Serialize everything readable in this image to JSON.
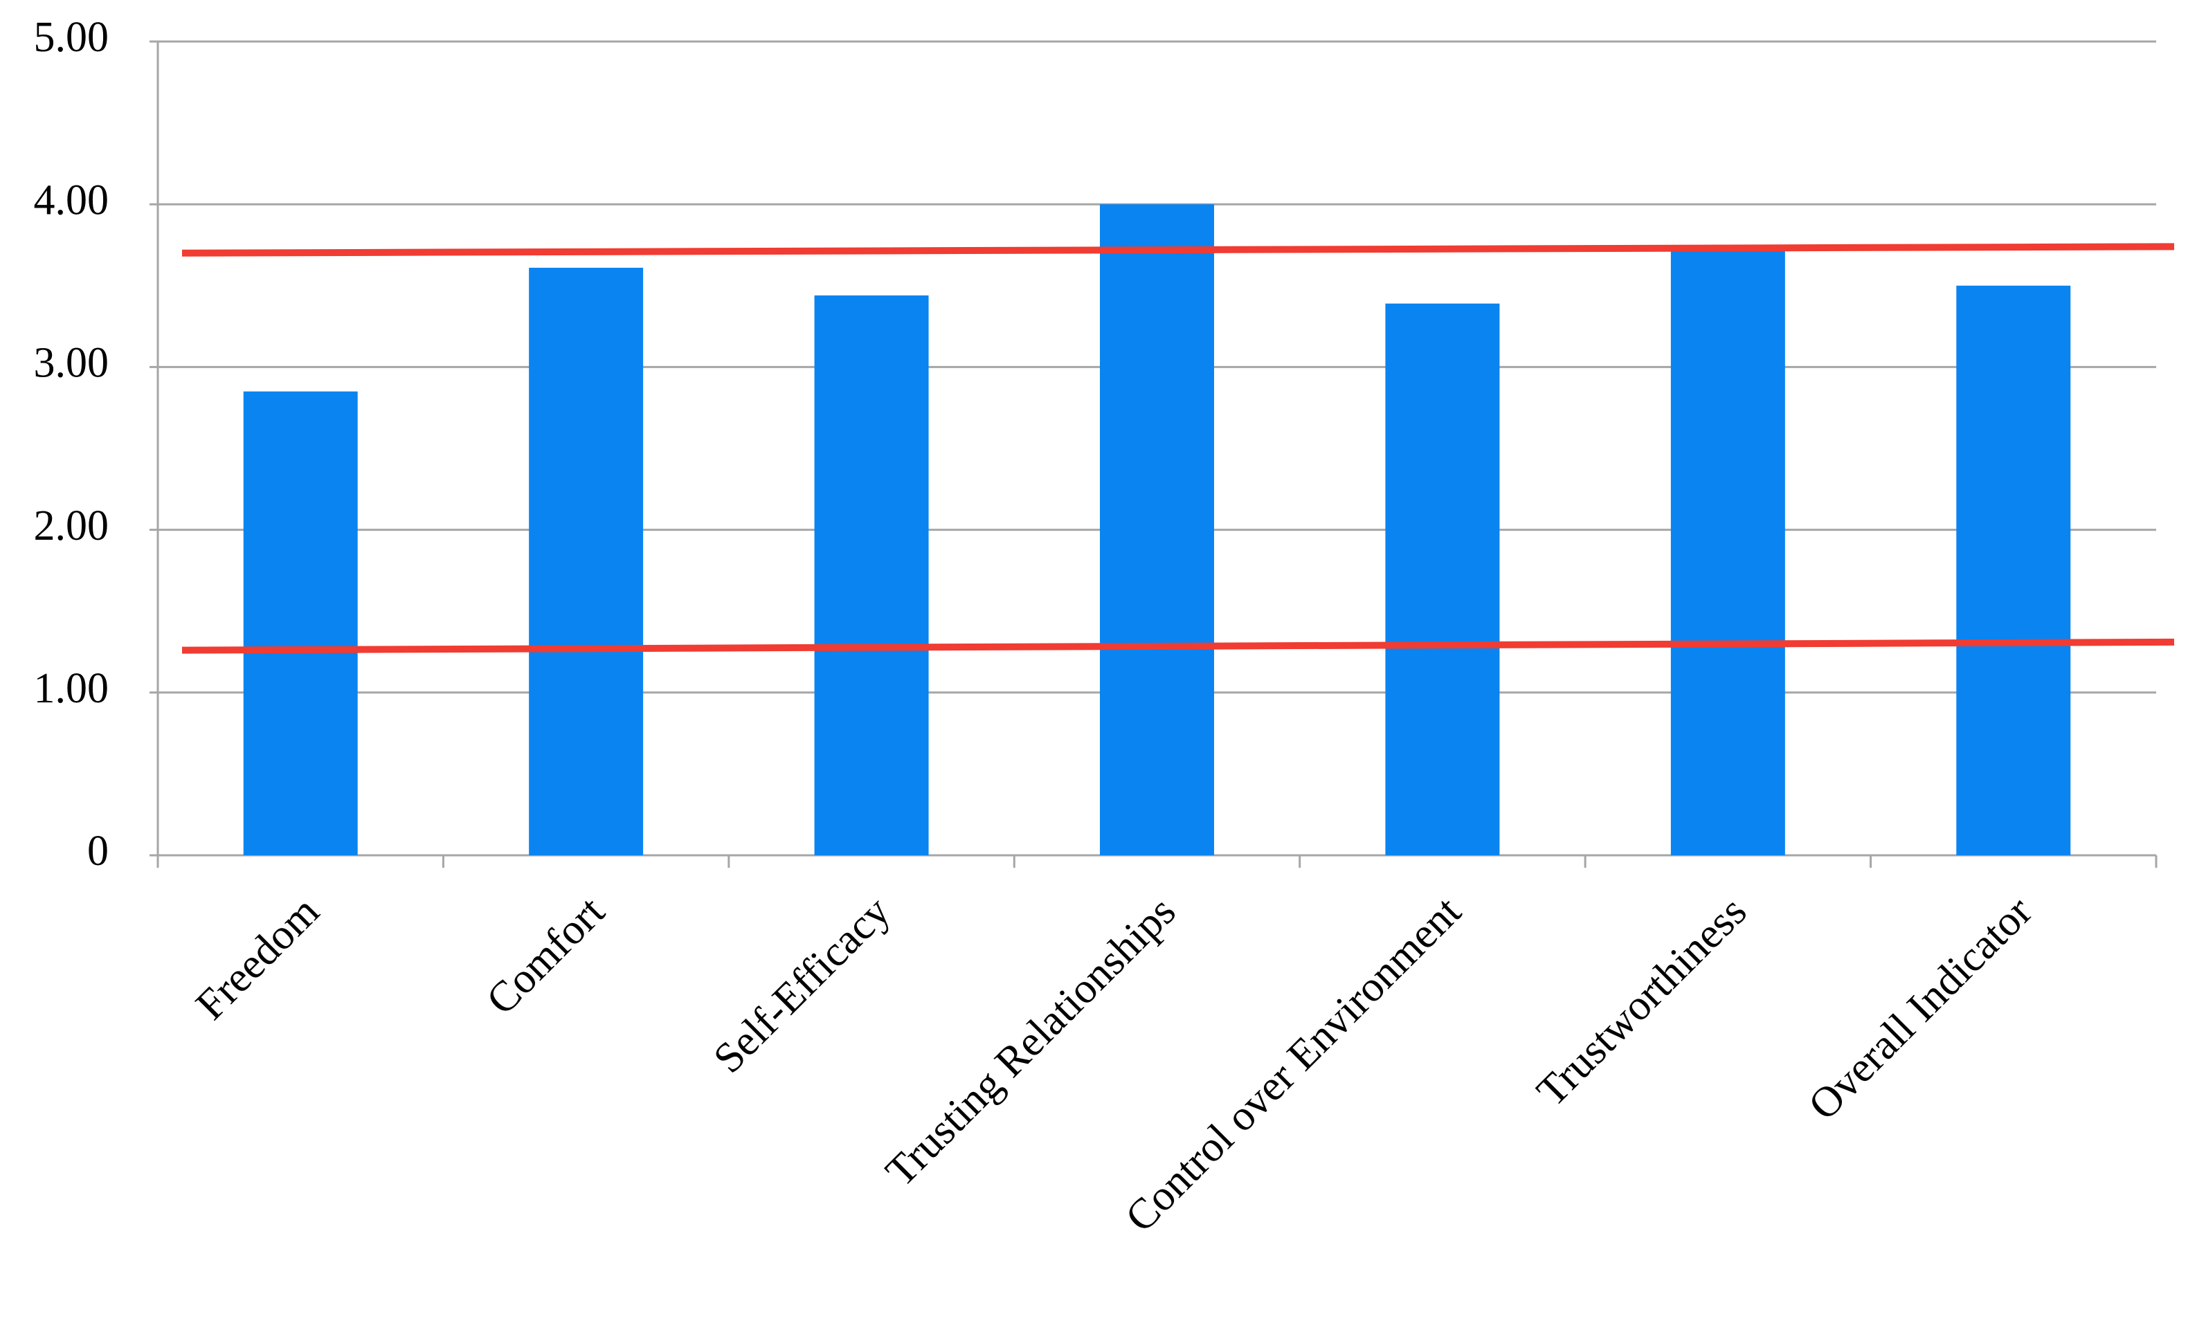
{
  "chart_data": {
    "type": "bar",
    "categories": [
      "Freedom",
      "Comfort",
      "Self-Efficacy",
      "Trusting Relationships",
      "Control over Environment",
      "Trustworthiness",
      "Overall Indicator"
    ],
    "values": [
      2.85,
      3.61,
      3.44,
      4.0,
      3.39,
      3.72,
      3.5
    ],
    "color": "#0a84f0",
    "ylim": [
      0,
      5
    ],
    "yticks": [
      0,
      {
        "value": 1,
        "label": "1.00"
      },
      {
        "value": 2,
        "label": "2.00"
      },
      {
        "value": 3,
        "label": "3.00"
      },
      {
        "value": 4,
        "label": "4.00"
      },
      {
        "value": 5,
        "label": "5.00"
      }
    ],
    "grid": true,
    "reference_lines": [
      {
        "color": "#f03c32",
        "values": [
          3.7,
          3.74
        ]
      },
      {
        "color": "#f03c32",
        "values": [
          1.26,
          1.31
        ]
      }
    ]
  }
}
